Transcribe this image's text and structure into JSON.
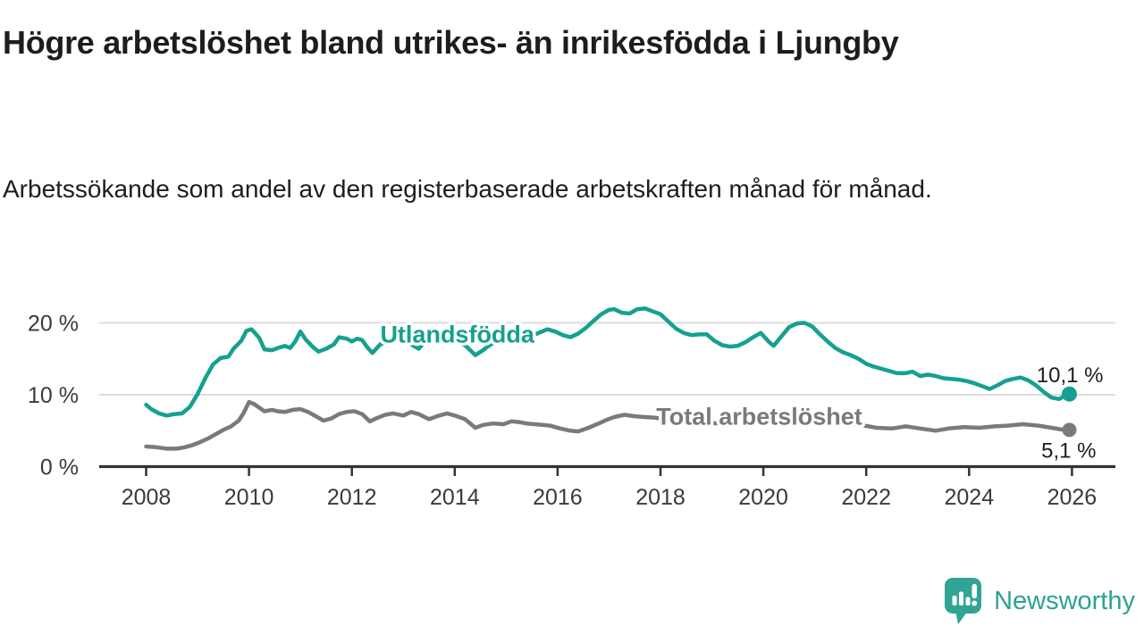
{
  "header": {
    "title": "Högre arbetslöshet bland utrikes- än inrikesfödda i Ljungby",
    "subtitle": "Arbetssökande som andel av den registerbaserade arbetskraften månad för månad."
  },
  "footer": {
    "brand": "Newsworthy",
    "brand_color": "#2ba394",
    "logo_icon": "speech-bubble-bar-chart-exclamation"
  },
  "chart_data": {
    "type": "line",
    "title": "Högre arbetslöshet bland utrikes- än inrikesfödda i Ljungby",
    "subtitle": "Arbetssökande som andel av den registerbaserade arbetskraften månad för månad.",
    "grid": "horizontal-only",
    "legend_position": "inline-labels-on-lines",
    "x_axis": {
      "ticks": [
        2008,
        2010,
        2012,
        2014,
        2016,
        2018,
        2020,
        2022,
        2024,
        2026
      ],
      "tick_labels": [
        "2008",
        "2010",
        "2012",
        "2014",
        "2016",
        "2018",
        "2020",
        "2022",
        "2024",
        "2026"
      ],
      "range": [
        2007.1,
        2026.9
      ]
    },
    "y_axis": {
      "ticks": [
        0,
        10,
        20
      ],
      "tick_labels": [
        "0 %",
        "10 %",
        "20 %"
      ],
      "range": [
        0,
        24.5
      ],
      "unit": "%"
    },
    "series": [
      {
        "id": "utlandsfodda",
        "name": "Utlandsfödda",
        "color": "#16a08f",
        "end_label": "10,1 %",
        "end_value": 10.1,
        "label_anchor": [
          2014.05,
          18.4
        ],
        "points": [
          [
            2008.0,
            8.6
          ],
          [
            2008.1,
            8.0
          ],
          [
            2008.25,
            7.4
          ],
          [
            2008.4,
            7.1
          ],
          [
            2008.55,
            7.3
          ],
          [
            2008.7,
            7.4
          ],
          [
            2008.85,
            8.3
          ],
          [
            2009.0,
            10.1
          ],
          [
            2009.15,
            12.3
          ],
          [
            2009.3,
            14.2
          ],
          [
            2009.45,
            15.1
          ],
          [
            2009.6,
            15.3
          ],
          [
            2009.7,
            16.4
          ],
          [
            2009.85,
            17.5
          ],
          [
            2009.95,
            18.9
          ],
          [
            2010.05,
            19.1
          ],
          [
            2010.2,
            17.9
          ],
          [
            2010.3,
            16.3
          ],
          [
            2010.45,
            16.2
          ],
          [
            2010.6,
            16.6
          ],
          [
            2010.7,
            16.8
          ],
          [
            2010.8,
            16.5
          ],
          [
            2010.9,
            17.4
          ],
          [
            2011.0,
            18.8
          ],
          [
            2011.1,
            17.7
          ],
          [
            2011.25,
            16.6
          ],
          [
            2011.35,
            16.0
          ],
          [
            2011.5,
            16.4
          ],
          [
            2011.65,
            17.0
          ],
          [
            2011.75,
            18.0
          ],
          [
            2011.9,
            17.8
          ],
          [
            2012.0,
            17.4
          ],
          [
            2012.1,
            17.8
          ],
          [
            2012.2,
            17.6
          ],
          [
            2012.3,
            16.6
          ],
          [
            2012.4,
            15.8
          ],
          [
            2012.55,
            17.0
          ],
          [
            2012.7,
            17.4
          ],
          [
            2012.85,
            17.6
          ],
          [
            2013.0,
            17.7
          ],
          [
            2013.15,
            17.0
          ],
          [
            2013.3,
            16.4
          ],
          [
            2013.45,
            17.6
          ],
          [
            2013.6,
            17.6
          ],
          [
            2013.75,
            17.3
          ],
          [
            2013.9,
            17.1
          ],
          [
            2014.05,
            17.3
          ],
          [
            2014.2,
            16.9
          ],
          [
            2014.4,
            15.5
          ],
          [
            2014.55,
            16.2
          ],
          [
            2014.7,
            17.0
          ],
          [
            2014.85,
            17.4
          ],
          [
            2015.0,
            17.6
          ],
          [
            2015.15,
            17.8
          ],
          [
            2015.3,
            18.0
          ],
          [
            2015.45,
            18.3
          ],
          [
            2015.6,
            18.5
          ],
          [
            2015.8,
            19.1
          ],
          [
            2015.95,
            18.8
          ],
          [
            2016.1,
            18.3
          ],
          [
            2016.25,
            18.0
          ],
          [
            2016.4,
            18.5
          ],
          [
            2016.55,
            19.3
          ],
          [
            2016.7,
            20.3
          ],
          [
            2016.85,
            21.2
          ],
          [
            2017.0,
            21.8
          ],
          [
            2017.1,
            21.9
          ],
          [
            2017.25,
            21.4
          ],
          [
            2017.4,
            21.3
          ],
          [
            2017.55,
            21.9
          ],
          [
            2017.7,
            22.0
          ],
          [
            2017.85,
            21.6
          ],
          [
            2018.0,
            21.2
          ],
          [
            2018.15,
            20.2
          ],
          [
            2018.3,
            19.2
          ],
          [
            2018.45,
            18.6
          ],
          [
            2018.6,
            18.3
          ],
          [
            2018.75,
            18.4
          ],
          [
            2018.9,
            18.4
          ],
          [
            2019.05,
            17.5
          ],
          [
            2019.2,
            16.9
          ],
          [
            2019.35,
            16.7
          ],
          [
            2019.5,
            16.8
          ],
          [
            2019.65,
            17.3
          ],
          [
            2019.8,
            18.0
          ],
          [
            2019.95,
            18.6
          ],
          [
            2020.1,
            17.4
          ],
          [
            2020.2,
            16.8
          ],
          [
            2020.35,
            18.1
          ],
          [
            2020.5,
            19.4
          ],
          [
            2020.65,
            19.9
          ],
          [
            2020.8,
            20.0
          ],
          [
            2020.95,
            19.5
          ],
          [
            2021.1,
            18.4
          ],
          [
            2021.25,
            17.4
          ],
          [
            2021.4,
            16.5
          ],
          [
            2021.55,
            15.9
          ],
          [
            2021.7,
            15.5
          ],
          [
            2021.85,
            15.0
          ],
          [
            2022.0,
            14.3
          ],
          [
            2022.15,
            13.9
          ],
          [
            2022.3,
            13.6
          ],
          [
            2022.45,
            13.3
          ],
          [
            2022.6,
            13.0
          ],
          [
            2022.75,
            13.0
          ],
          [
            2022.9,
            13.2
          ],
          [
            2023.05,
            12.6
          ],
          [
            2023.2,
            12.8
          ],
          [
            2023.35,
            12.6
          ],
          [
            2023.5,
            12.3
          ],
          [
            2023.65,
            12.2
          ],
          [
            2023.8,
            12.1
          ],
          [
            2023.95,
            11.9
          ],
          [
            2024.1,
            11.6
          ],
          [
            2024.25,
            11.2
          ],
          [
            2024.4,
            10.8
          ],
          [
            2024.55,
            11.3
          ],
          [
            2024.7,
            11.9
          ],
          [
            2024.85,
            12.2
          ],
          [
            2025.0,
            12.4
          ],
          [
            2025.15,
            12.0
          ],
          [
            2025.3,
            11.3
          ],
          [
            2025.45,
            10.4
          ],
          [
            2025.6,
            9.6
          ],
          [
            2025.75,
            9.4
          ],
          [
            2025.85,
            9.8
          ],
          [
            2025.95,
            10.1
          ]
        ]
      },
      {
        "id": "total-arbetsloshet",
        "name": "Total arbetslöshet",
        "color": "#7a7a7a",
        "end_label": "5,1 %",
        "end_value": 5.1,
        "label_anchor": [
          2019.92,
          6.95
        ],
        "points": [
          [
            2008.0,
            2.8
          ],
          [
            2008.2,
            2.7
          ],
          [
            2008.4,
            2.5
          ],
          [
            2008.6,
            2.5
          ],
          [
            2008.75,
            2.7
          ],
          [
            2008.9,
            3.0
          ],
          [
            2009.05,
            3.4
          ],
          [
            2009.2,
            3.9
          ],
          [
            2009.35,
            4.5
          ],
          [
            2009.5,
            5.1
          ],
          [
            2009.65,
            5.6
          ],
          [
            2009.8,
            6.4
          ],
          [
            2009.9,
            7.5
          ],
          [
            2010.0,
            9.0
          ],
          [
            2010.1,
            8.7
          ],
          [
            2010.2,
            8.2
          ],
          [
            2010.3,
            7.7
          ],
          [
            2010.45,
            7.9
          ],
          [
            2010.55,
            7.7
          ],
          [
            2010.7,
            7.6
          ],
          [
            2010.85,
            7.9
          ],
          [
            2011.0,
            8.0
          ],
          [
            2011.15,
            7.6
          ],
          [
            2011.3,
            7.0
          ],
          [
            2011.45,
            6.4
          ],
          [
            2011.6,
            6.7
          ],
          [
            2011.75,
            7.3
          ],
          [
            2011.9,
            7.6
          ],
          [
            2012.05,
            7.7
          ],
          [
            2012.2,
            7.3
          ],
          [
            2012.35,
            6.3
          ],
          [
            2012.5,
            6.8
          ],
          [
            2012.65,
            7.2
          ],
          [
            2012.8,
            7.4
          ],
          [
            2013.0,
            7.1
          ],
          [
            2013.15,
            7.6
          ],
          [
            2013.3,
            7.3
          ],
          [
            2013.5,
            6.6
          ],
          [
            2013.7,
            7.1
          ],
          [
            2013.85,
            7.4
          ],
          [
            2014.0,
            7.1
          ],
          [
            2014.2,
            6.6
          ],
          [
            2014.4,
            5.4
          ],
          [
            2014.55,
            5.8
          ],
          [
            2014.75,
            6.0
          ],
          [
            2014.95,
            5.9
          ],
          [
            2015.1,
            6.3
          ],
          [
            2015.25,
            6.2
          ],
          [
            2015.4,
            6.0
          ],
          [
            2015.55,
            5.9
          ],
          [
            2015.7,
            5.8
          ],
          [
            2015.85,
            5.7
          ],
          [
            2016.05,
            5.3
          ],
          [
            2016.25,
            5.0
          ],
          [
            2016.4,
            4.9
          ],
          [
            2016.6,
            5.4
          ],
          [
            2016.8,
            6.0
          ],
          [
            2016.95,
            6.5
          ],
          [
            2017.1,
            6.9
          ],
          [
            2017.3,
            7.2
          ],
          [
            2017.5,
            7.0
          ],
          [
            2017.7,
            6.9
          ],
          [
            2017.9,
            6.8
          ],
          [
            2018.1,
            6.6
          ],
          [
            2018.35,
            6.4
          ],
          [
            2018.6,
            6.2
          ],
          [
            2018.85,
            6.2
          ],
          [
            2019.1,
            6.0
          ],
          [
            2019.35,
            6.0
          ],
          [
            2019.6,
            6.1
          ],
          [
            2019.85,
            6.3
          ],
          [
            2020.1,
            6.5
          ],
          [
            2020.35,
            7.0
          ],
          [
            2020.6,
            7.4
          ],
          [
            2020.85,
            7.2
          ],
          [
            2021.1,
            6.8
          ],
          [
            2021.35,
            6.4
          ],
          [
            2021.6,
            6.1
          ],
          [
            2021.85,
            5.8
          ],
          [
            2022.05,
            5.6
          ],
          [
            2022.2,
            5.4
          ],
          [
            2022.5,
            5.3
          ],
          [
            2022.77,
            5.6
          ],
          [
            2023.05,
            5.3
          ],
          [
            2023.35,
            5.0
          ],
          [
            2023.6,
            5.3
          ],
          [
            2023.9,
            5.5
          ],
          [
            2024.2,
            5.4
          ],
          [
            2024.5,
            5.6
          ],
          [
            2024.75,
            5.7
          ],
          [
            2025.05,
            5.9
          ],
          [
            2025.35,
            5.7
          ],
          [
            2025.6,
            5.4
          ],
          [
            2025.85,
            5.1
          ],
          [
            2025.95,
            5.1
          ]
        ]
      }
    ]
  }
}
